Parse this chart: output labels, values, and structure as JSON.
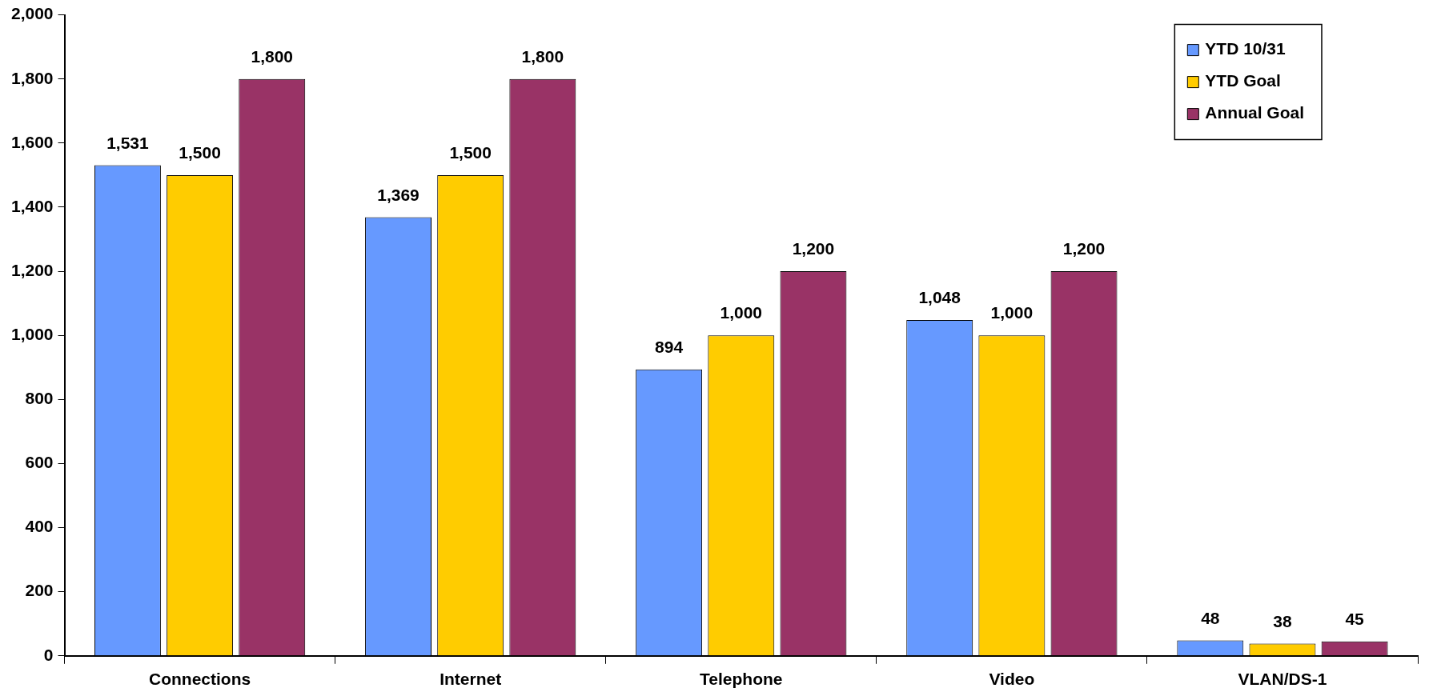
{
  "chart_data": {
    "type": "bar",
    "categories": [
      "Connections",
      "Internet",
      "Telephone",
      "Video",
      "VLAN/DS-1"
    ],
    "series": [
      {
        "name": "YTD 10/31",
        "color": "#6699ff",
        "values": [
          1531,
          1369,
          894,
          1048,
          48
        ],
        "value_labels": [
          "1,531",
          "1,369",
          "894",
          "1,048",
          "48"
        ]
      },
      {
        "name": "YTD Goal",
        "color": "#ffcc00",
        "values": [
          1500,
          1500,
          1000,
          1000,
          38
        ],
        "value_labels": [
          "1,500",
          "1,500",
          "1,000",
          "1,000",
          "38"
        ]
      },
      {
        "name": "Annual Goal",
        "color": "#993366",
        "values": [
          1800,
          1800,
          1200,
          1200,
          45
        ],
        "value_labels": [
          "1,800",
          "1,800",
          "1,200",
          "1,200",
          "45"
        ]
      }
    ],
    "ylim": [
      0,
      2000
    ],
    "yticks": [
      {
        "value": 0,
        "label": "0"
      },
      {
        "value": 200,
        "label": "200"
      },
      {
        "value": 400,
        "label": "400"
      },
      {
        "value": 600,
        "label": "600"
      },
      {
        "value": 800,
        "label": "800"
      },
      {
        "value": 1000,
        "label": "1,000"
      },
      {
        "value": 1200,
        "label": "1,200"
      },
      {
        "value": 1400,
        "label": "1,400"
      },
      {
        "value": 1600,
        "label": "1,600"
      },
      {
        "value": 1800,
        "label": "1,800"
      },
      {
        "value": 2000,
        "label": "2,000"
      }
    ],
    "grid": false,
    "legend": "top right"
  }
}
